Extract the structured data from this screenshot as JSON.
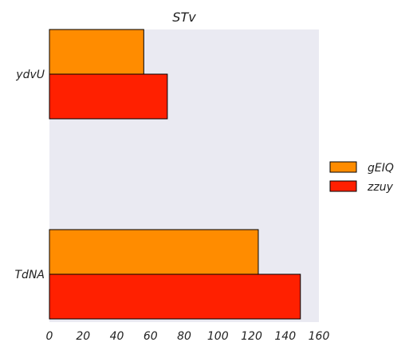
{
  "chart_data": {
    "type": "bar",
    "orientation": "horizontal",
    "title": "STv",
    "xlabel": "",
    "ylabel": "",
    "categories": [
      "ydvU",
      "TdNA"
    ],
    "series": [
      {
        "name": "gEIQ",
        "values": [
          56,
          124
        ],
        "color": "#ff8c00"
      },
      {
        "name": "zzuy",
        "values": [
          70,
          149
        ],
        "color": "#ff2000"
      }
    ],
    "xlim": [
      0,
      160
    ],
    "xticks": [
      0,
      20,
      40,
      60,
      80,
      100,
      120,
      140,
      160
    ],
    "grid": false,
    "legend_position": "right",
    "plot_background": "#eaeaf2"
  }
}
